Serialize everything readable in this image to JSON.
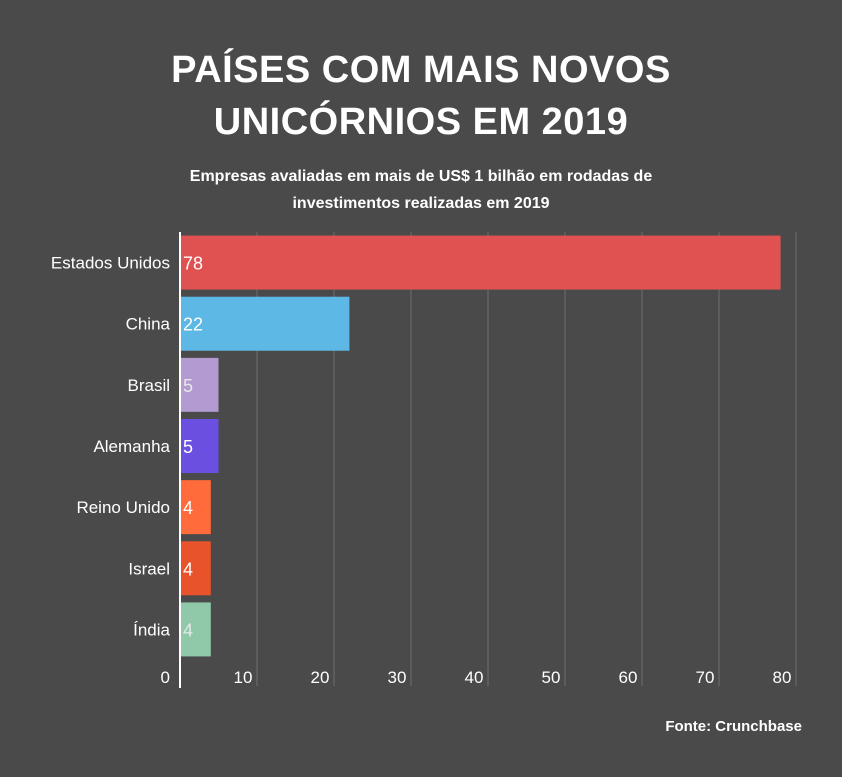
{
  "chart_data": {
    "type": "bar",
    "orientation": "horizontal",
    "title": "PAÍSES COM MAIS NOVOS UNICÓRNIOS EM 2019",
    "subtitle": "Empresas avaliadas em mais de US$ 1 bilhão em rodadas de investimentos realizadas em 2019",
    "categories": [
      "Estados Unidos",
      "China",
      "Brasil",
      "Alemanha",
      "Reino Unido",
      "Israel",
      "Índia"
    ],
    "values": [
      78,
      22,
      5,
      5,
      4,
      4,
      4
    ],
    "colors": [
      "#e05252",
      "#5db8e6",
      "#b39ad1",
      "#6a4fe0",
      "#ff6b3a",
      "#e8532b",
      "#8fc9a9"
    ],
    "data_label_colors": [
      "#ffffff",
      "#ffffff",
      "#e8e8e8",
      "#ffffff",
      "#ffffff",
      "#ffffff",
      "#e8e8e8"
    ],
    "xlim": [
      0,
      80
    ],
    "xticks": [
      0,
      10,
      20,
      30,
      40,
      50,
      60,
      70,
      80
    ],
    "grid": true,
    "source": "Fonte: Crunchbase"
  }
}
